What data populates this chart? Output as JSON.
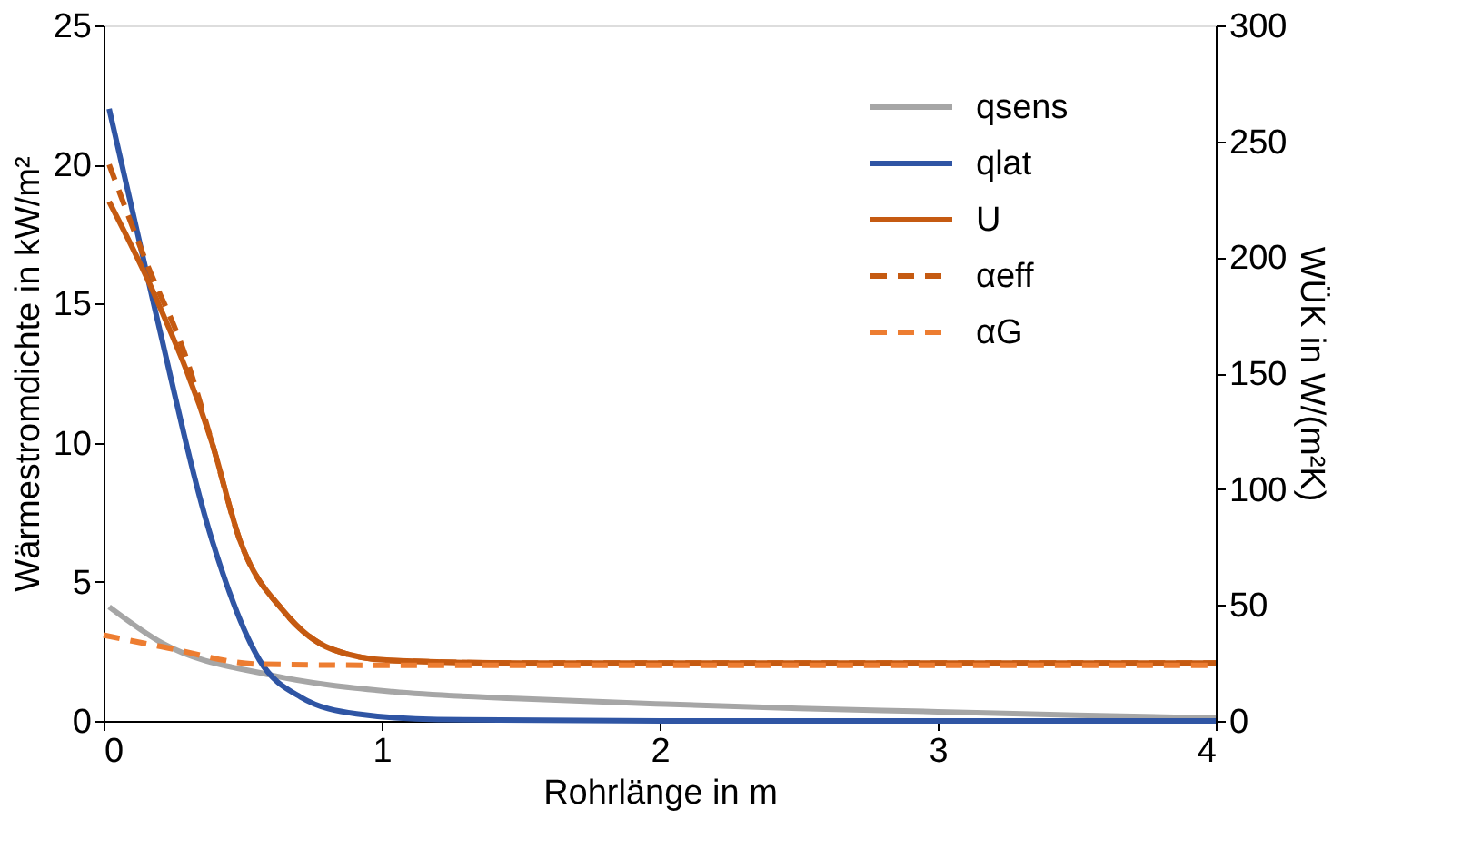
{
  "chart_data": {
    "type": "line",
    "xlabel": "Rohrlänge in m",
    "ylabel": "Wärmestromdichte in kW/m²",
    "y2label": "WÜK in W/(m²K)",
    "xlim": [
      0,
      4
    ],
    "xticks": [
      0,
      1,
      2,
      3,
      4
    ],
    "ylim": [
      0,
      25
    ],
    "yticks": [
      0,
      5,
      10,
      15,
      20,
      25
    ],
    "y2lim": [
      0,
      300
    ],
    "y2ticks": [
      0,
      50,
      100,
      150,
      200,
      250,
      300
    ],
    "grid": false,
    "legend": "top right",
    "marker": "none",
    "series": [
      {
        "name": "qsens",
        "color": "#a6a6a6",
        "line_style": "solid",
        "x": [
          0.02,
          0.21,
          0.6,
          1.04,
          1.5,
          2.02,
          2.5,
          3.0,
          3.5,
          4.0
        ],
        "values": [
          4.1,
          2.8,
          1.65,
          1.05,
          0.8,
          0.6,
          0.45,
          0.33,
          0.2,
          0.1
        ]
      },
      {
        "name": "qlat",
        "color": "#2f55a4",
        "line_style": "solid",
        "x": [
          0.02,
          0.18,
          0.39,
          0.56,
          0.71,
          0.91,
          1.2,
          2.0,
          3.0,
          4.0
        ],
        "values": [
          22,
          15.0,
          6.5,
          2.2,
          0.85,
          0.25,
          0.05,
          0,
          0,
          0
        ]
      },
      {
        "name": "U",
        "color": "#c55a11",
        "line_style": "solid",
        "axis": "y2",
        "x": [
          0.02,
          0.19,
          0.39,
          0.49,
          0.65,
          0.82,
          1.04,
          1.5,
          2.0,
          3.0,
          4.0
        ],
        "values": [
          224,
          182,
          120,
          78,
          47,
          31,
          26,
          25,
          25,
          25,
          25
        ]
      },
      {
        "name": "αeff",
        "color": "#c55a11",
        "line_style": "dashed",
        "axis": "y2",
        "x": [
          0.02,
          0.16,
          0.29,
          0.39,
          0.49,
          0.65,
          0.82,
          1.04,
          1.5,
          2.0,
          3.0,
          4.0
        ],
        "values": [
          240,
          196,
          159,
          120,
          78,
          47,
          31,
          26,
          25,
          25,
          25,
          25
        ]
      },
      {
        "name": "αG",
        "color": "#ed7d31",
        "line_style": "dashed",
        "axis": "y2",
        "x": [
          0.0,
          0.21,
          0.56,
          1.0,
          2.0,
          3.0,
          4.0
        ],
        "values": [
          37,
          32,
          24.5,
          24,
          24,
          24,
          24
        ]
      }
    ]
  }
}
